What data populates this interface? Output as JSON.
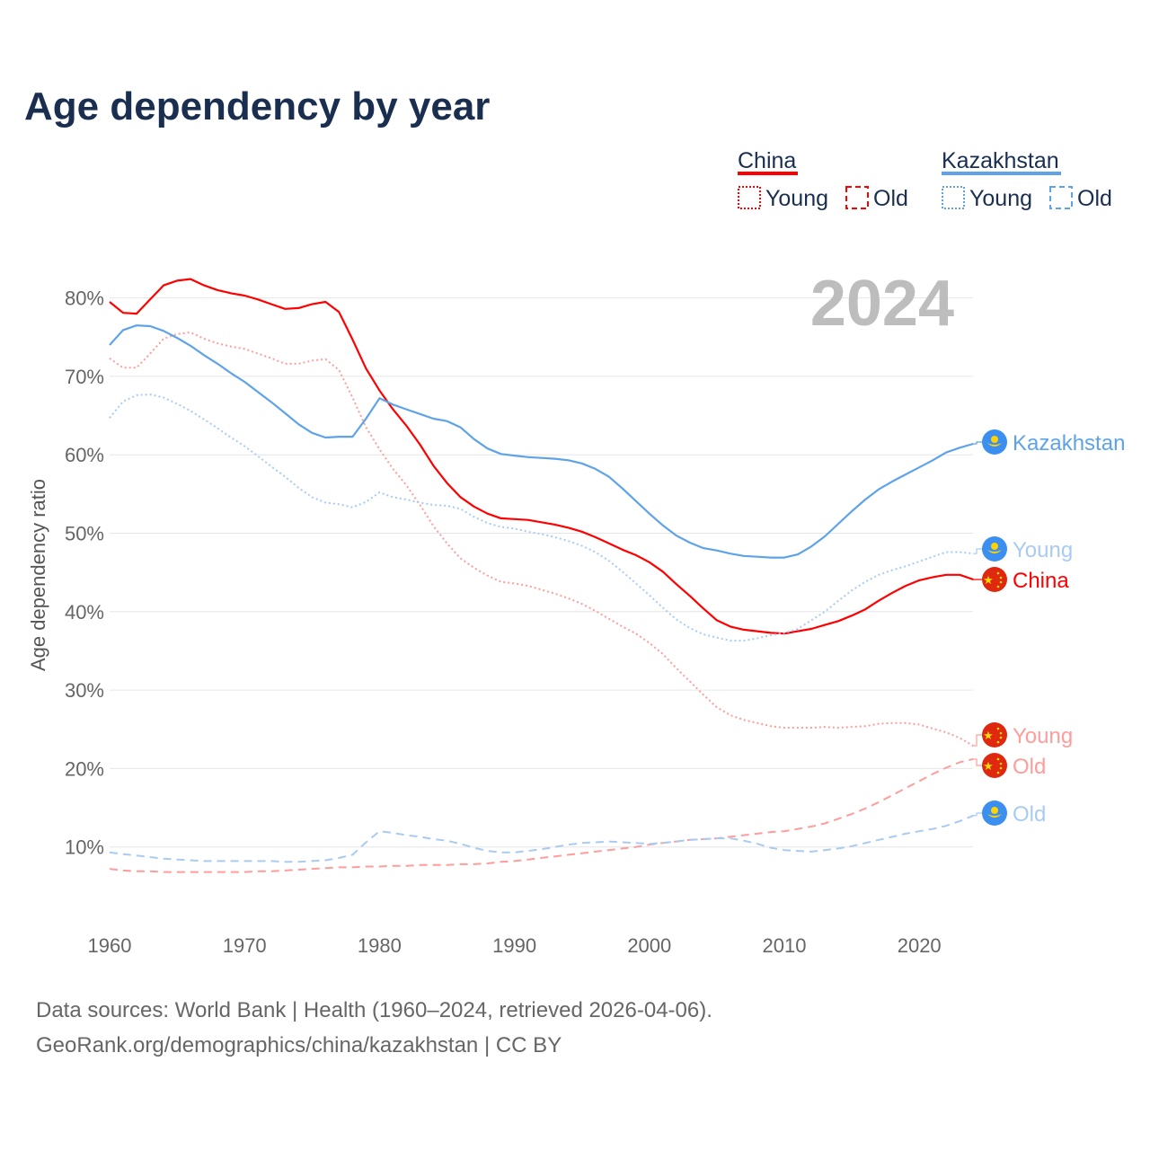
{
  "title": "Age dependency by year",
  "year_overlay": "2024",
  "footer": {
    "line1": "Data sources: World Bank | Health (1960–2024, retrieved 2026-04-06).",
    "line2": "GeoRank.org/demographics/china/kazakhstan | CC BY"
  },
  "legend": {
    "china": {
      "label": "China",
      "young": "Young",
      "old": "Old"
    },
    "kazakhstan": {
      "label": "Kazakhstan",
      "young": "Young",
      "old": "Old"
    }
  },
  "colors": {
    "china": "#ff0000",
    "china_light": "#ff9c9c",
    "kazakhstan": "#5ea3ea",
    "kazakhstan_light": "#a9cbf2",
    "grid": "#e6e6e6"
  },
  "chart_data": {
    "type": "line",
    "title": "Age dependency by year",
    "xlabel": "",
    "ylabel": "Age dependency ratio",
    "xlim": [
      1960,
      2024
    ],
    "ylim": [
      0,
      85
    ],
    "x_ticks": [
      "1960",
      "1970",
      "1980",
      "1990",
      "2000",
      "2010",
      "2020"
    ],
    "y_ticks": [
      "10%",
      "20%",
      "30%",
      "40%",
      "50%",
      "60%",
      "70%",
      "80%"
    ],
    "grid": true,
    "legend_position": "top-right",
    "x_start": 1960,
    "series": [
      {
        "name": "China",
        "end_label": "China",
        "style": "solid",
        "color": "#ff0000",
        "values": [
          79.5,
          78.1,
          78.0,
          79.8,
          81.6,
          82.2,
          82.4,
          81.6,
          81.0,
          80.6,
          80.3,
          79.8,
          79.2,
          78.6,
          78.7,
          79.2,
          79.5,
          78.2,
          74.7,
          71.0,
          68.2,
          65.8,
          63.7,
          61.3,
          58.6,
          56.4,
          54.6,
          53.4,
          52.5,
          51.9,
          51.8,
          51.7,
          51.4,
          51.1,
          50.7,
          50.2,
          49.5,
          48.7,
          47.9,
          47.2,
          46.3,
          45.1,
          43.5,
          42.0,
          40.4,
          38.9,
          38.1,
          37.7,
          37.5,
          37.3,
          37.2,
          37.5,
          37.8,
          38.3,
          38.8,
          39.5,
          40.3,
          41.4,
          42.4,
          43.3,
          44.0,
          44.4,
          44.7,
          44.7,
          44.1
        ]
      },
      {
        "name": "China Young",
        "end_label": "Young",
        "style": "dotted",
        "color": "#ff9c9c",
        "values": [
          72.3,
          71.1,
          71.1,
          72.9,
          74.8,
          75.4,
          75.6,
          74.8,
          74.2,
          73.8,
          73.5,
          72.9,
          72.3,
          71.6,
          71.6,
          72.0,
          72.2,
          70.8,
          67.3,
          63.5,
          60.7,
          58.2,
          56.1,
          53.6,
          50.9,
          48.7,
          46.8,
          45.6,
          44.6,
          43.8,
          43.6,
          43.3,
          42.8,
          42.3,
          41.7,
          41.0,
          40.1,
          39.1,
          38.1,
          37.2,
          36.0,
          34.6,
          32.8,
          31.1,
          29.4,
          27.8,
          26.8,
          26.2,
          25.8,
          25.4,
          25.2,
          25.2,
          25.2,
          25.3,
          25.2,
          25.3,
          25.4,
          25.7,
          25.8,
          25.8,
          25.6,
          25.1,
          24.6,
          23.9,
          22.9
        ]
      },
      {
        "name": "China Old",
        "end_label": "Old",
        "style": "dashed",
        "color": "#ff9c9c",
        "values": [
          7.2,
          7.0,
          6.9,
          6.9,
          6.8,
          6.8,
          6.8,
          6.8,
          6.8,
          6.8,
          6.8,
          6.9,
          6.9,
          7.0,
          7.1,
          7.2,
          7.3,
          7.4,
          7.4,
          7.5,
          7.5,
          7.6,
          7.6,
          7.7,
          7.7,
          7.7,
          7.8,
          7.8,
          7.9,
          8.1,
          8.2,
          8.4,
          8.6,
          8.8,
          9.0,
          9.2,
          9.4,
          9.6,
          9.8,
          10.0,
          10.3,
          10.5,
          10.7,
          10.9,
          11.0,
          11.1,
          11.3,
          11.5,
          11.7,
          11.9,
          12.0,
          12.3,
          12.6,
          13.0,
          13.6,
          14.2,
          14.9,
          15.7,
          16.6,
          17.5,
          18.4,
          19.3,
          20.1,
          20.8,
          21.2
        ]
      },
      {
        "name": "Kazakhstan",
        "end_label": "Kazakhstan",
        "style": "solid",
        "color": "#5ea3ea",
        "values": [
          74.0,
          75.9,
          76.5,
          76.4,
          75.8,
          74.9,
          73.9,
          72.7,
          71.6,
          70.4,
          69.3,
          68.0,
          66.7,
          65.3,
          63.9,
          62.8,
          62.2,
          62.3,
          62.3,
          64.6,
          67.2,
          66.4,
          65.8,
          65.2,
          64.6,
          64.3,
          63.5,
          62.0,
          60.8,
          60.1,
          59.9,
          59.7,
          59.6,
          59.5,
          59.3,
          58.9,
          58.2,
          57.2,
          55.7,
          54.1,
          52.5,
          51.0,
          49.7,
          48.8,
          48.1,
          47.8,
          47.4,
          47.1,
          47.0,
          46.9,
          46.9,
          47.3,
          48.3,
          49.6,
          51.2,
          52.8,
          54.3,
          55.6,
          56.6,
          57.5,
          58.4,
          59.3,
          60.3,
          60.9,
          61.4
        ]
      },
      {
        "name": "Kazakhstan Young",
        "end_label": "Young",
        "style": "dotted",
        "color": "#a9cbf2",
        "values": [
          64.7,
          66.8,
          67.6,
          67.7,
          67.3,
          66.5,
          65.6,
          64.5,
          63.4,
          62.2,
          61.1,
          59.8,
          58.5,
          57.2,
          55.8,
          54.6,
          53.9,
          53.7,
          53.3,
          54.0,
          55.2,
          54.6,
          54.3,
          53.9,
          53.6,
          53.5,
          53.1,
          52.1,
          51.3,
          50.8,
          50.6,
          50.2,
          49.9,
          49.5,
          49.0,
          48.4,
          47.6,
          46.5,
          45.1,
          43.6,
          42.1,
          40.5,
          39.0,
          37.9,
          37.1,
          36.7,
          36.3,
          36.3,
          36.6,
          37.0,
          37.3,
          37.8,
          38.9,
          40.0,
          41.4,
          42.7,
          43.8,
          44.7,
          45.3,
          45.8,
          46.4,
          47.0,
          47.6,
          47.6,
          47.4
        ]
      },
      {
        "name": "Kazakhstan Old",
        "end_label": "Old",
        "style": "dashed",
        "color": "#a9cbf2",
        "values": [
          9.3,
          9.1,
          8.9,
          8.7,
          8.5,
          8.4,
          8.3,
          8.2,
          8.2,
          8.2,
          8.2,
          8.2,
          8.2,
          8.1,
          8.1,
          8.2,
          8.3,
          8.6,
          9.0,
          10.6,
          12.0,
          11.8,
          11.5,
          11.3,
          11.0,
          10.8,
          10.4,
          9.9,
          9.5,
          9.3,
          9.3,
          9.5,
          9.7,
          10.0,
          10.3,
          10.5,
          10.6,
          10.7,
          10.6,
          10.5,
          10.4,
          10.5,
          10.7,
          10.9,
          11.0,
          11.1,
          11.1,
          10.8,
          10.4,
          9.9,
          9.6,
          9.5,
          9.4,
          9.6,
          9.8,
          10.1,
          10.5,
          10.9,
          11.3,
          11.7,
          12.0,
          12.3,
          12.7,
          13.3,
          14.0
        ]
      }
    ]
  }
}
